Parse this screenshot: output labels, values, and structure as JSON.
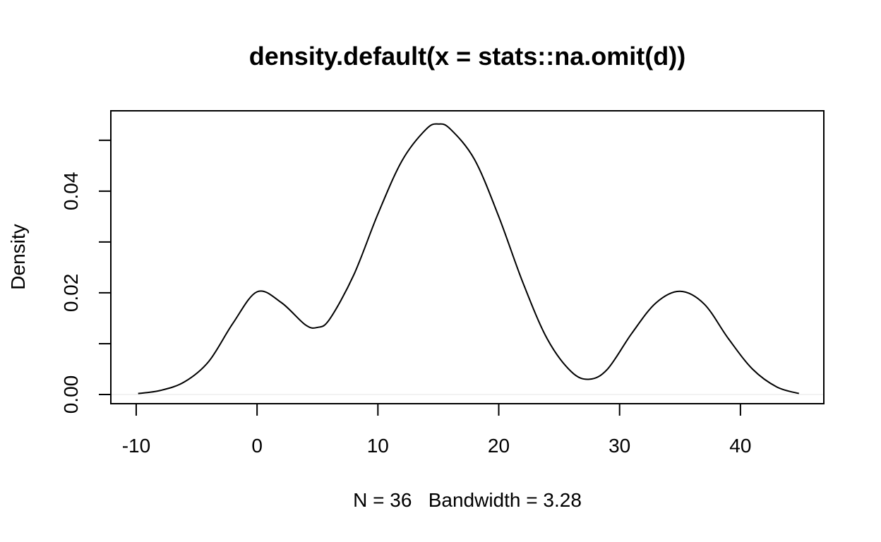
{
  "chart_data": {
    "type": "line",
    "title": "density.default(x = stats::na.omit(d))",
    "xlabel": "N = 36   Bandwidth = 3.28",
    "ylabel": "Density",
    "xlim": [
      -12.1,
      46.9
    ],
    "ylim": [
      -0.0018,
      0.0558
    ],
    "x_ticks": [
      -10,
      0,
      10,
      20,
      30,
      40
    ],
    "x_tick_labels": [
      "-10",
      "0",
      "10",
      "20",
      "30",
      "40"
    ],
    "y_ticks": [
      0.0,
      0.01,
      0.02,
      0.03,
      0.04,
      0.05
    ],
    "y_tick_labels": [
      "0.00",
      "",
      "0.02",
      "",
      "0.04",
      ""
    ],
    "grid": false,
    "series": [
      {
        "x": [
          -9.84,
          -8,
          -6,
          -4,
          -2,
          0,
          2,
          4,
          5,
          6,
          8,
          10,
          12,
          14,
          15,
          16,
          18,
          20,
          22,
          24,
          26,
          27.5,
          29,
          31,
          33,
          35,
          37,
          39,
          41,
          43,
          44.84
        ],
        "y": [
          0.0002,
          0.0008,
          0.0025,
          0.0065,
          0.014,
          0.0202,
          0.0181,
          0.0137,
          0.0132,
          0.0148,
          0.0235,
          0.0355,
          0.046,
          0.0522,
          0.0532,
          0.0522,
          0.0462,
          0.035,
          0.022,
          0.011,
          0.0045,
          0.003,
          0.005,
          0.012,
          0.018,
          0.0203,
          0.0178,
          0.011,
          0.005,
          0.0015,
          0.0002
        ]
      }
    ]
  }
}
